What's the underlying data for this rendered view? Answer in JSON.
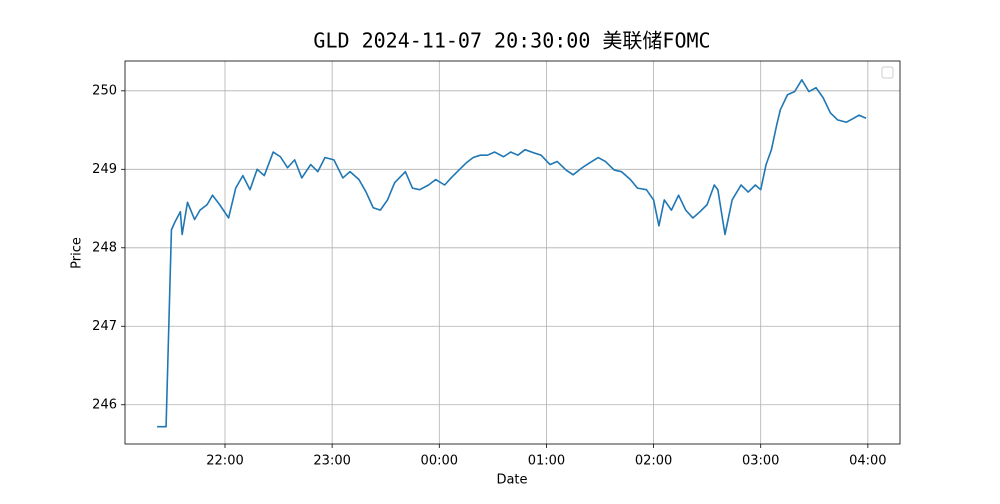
{
  "chart_data": {
    "type": "line",
    "title": "GLD 2024-11-07 20:30:00 美联储FOMC",
    "x_label": "Date",
    "y_label": "Price",
    "x": [
      "21:22",
      "21:27",
      "21:30",
      "21:32",
      "21:35",
      "21:36",
      "21:39",
      "21:43",
      "21:46",
      "21:50",
      "21:53",
      "21:57",
      "22:02",
      "22:06",
      "22:10",
      "22:14",
      "22:18",
      "22:22",
      "22:27",
      "22:31",
      "22:35",
      "22:39",
      "22:43",
      "22:48",
      "22:52",
      "22:56",
      "23:01",
      "23:06",
      "23:10",
      "23:15",
      "23:19",
      "23:23",
      "23:27",
      "23:31",
      "23:35",
      "23:41",
      "23:45",
      "23:49",
      "23:54",
      "23:58",
      "00:03",
      "00:07",
      "00:11",
      "00:15",
      "00:19",
      "00:23",
      "00:27",
      "00:31",
      "00:36",
      "00:40",
      "00:44",
      "00:48",
      "00:53",
      "00:57",
      "01:02",
      "01:06",
      "01:11",
      "01:15",
      "01:20",
      "01:24",
      "01:29",
      "01:33",
      "01:38",
      "01:42",
      "01:47",
      "01:51",
      "01:56",
      "02:00",
      "02:03",
      "02:06",
      "02:10",
      "02:14",
      "02:18",
      "02:22",
      "02:26",
      "02:30",
      "02:34",
      "02:36",
      "02:40",
      "02:44",
      "02:49",
      "02:53",
      "02:57",
      "03:00",
      "03:03",
      "03:06",
      "03:09",
      "03:11",
      "03:15",
      "03:19",
      "03:23",
      "03:27",
      "03:31",
      "03:35",
      "03:39",
      "03:43",
      "03:48",
      "03:52",
      "03:55",
      "03:59"
    ],
    "series": [
      {
        "color": "#1f77b4",
        "values": [
          245.72,
          245.72,
          248.23,
          248.33,
          248.46,
          248.17,
          248.58,
          248.36,
          248.48,
          248.55,
          248.67,
          248.55,
          248.38,
          248.76,
          248.92,
          248.74,
          249.0,
          248.92,
          249.22,
          249.16,
          249.02,
          249.12,
          248.89,
          249.06,
          248.97,
          249.15,
          249.12,
          248.89,
          248.97,
          248.87,
          248.71,
          248.51,
          248.48,
          248.61,
          248.83,
          248.97,
          248.76,
          248.74,
          248.8,
          248.87,
          248.8,
          248.9,
          248.99,
          249.08,
          249.15,
          249.18,
          249.18,
          249.22,
          249.16,
          249.22,
          249.18,
          249.25,
          249.21,
          249.18,
          249.06,
          249.1,
          248.99,
          248.93,
          249.02,
          249.08,
          249.15,
          249.1,
          248.99,
          248.97,
          248.87,
          248.76,
          248.74,
          248.61,
          248.28,
          248.61,
          248.48,
          248.67,
          248.48,
          248.38,
          248.46,
          248.55,
          248.8,
          248.74,
          248.17,
          248.61,
          248.8,
          248.71,
          248.8,
          248.74,
          249.06,
          249.25,
          249.57,
          249.76,
          249.95,
          249.99,
          250.14,
          249.99,
          250.04,
          249.91,
          249.72,
          249.63,
          249.6,
          249.65,
          249.69,
          249.65
        ]
      }
    ],
    "xlim": [
      "21:04",
      "04:18"
    ],
    "xticks": [
      "22:00",
      "23:00",
      "00:00",
      "01:00",
      "02:00",
      "03:00",
      "04:00"
    ],
    "ylim": [
      245.5,
      250.38
    ],
    "yticks": [
      246,
      247,
      248,
      249,
      250
    ],
    "grid": true
  }
}
